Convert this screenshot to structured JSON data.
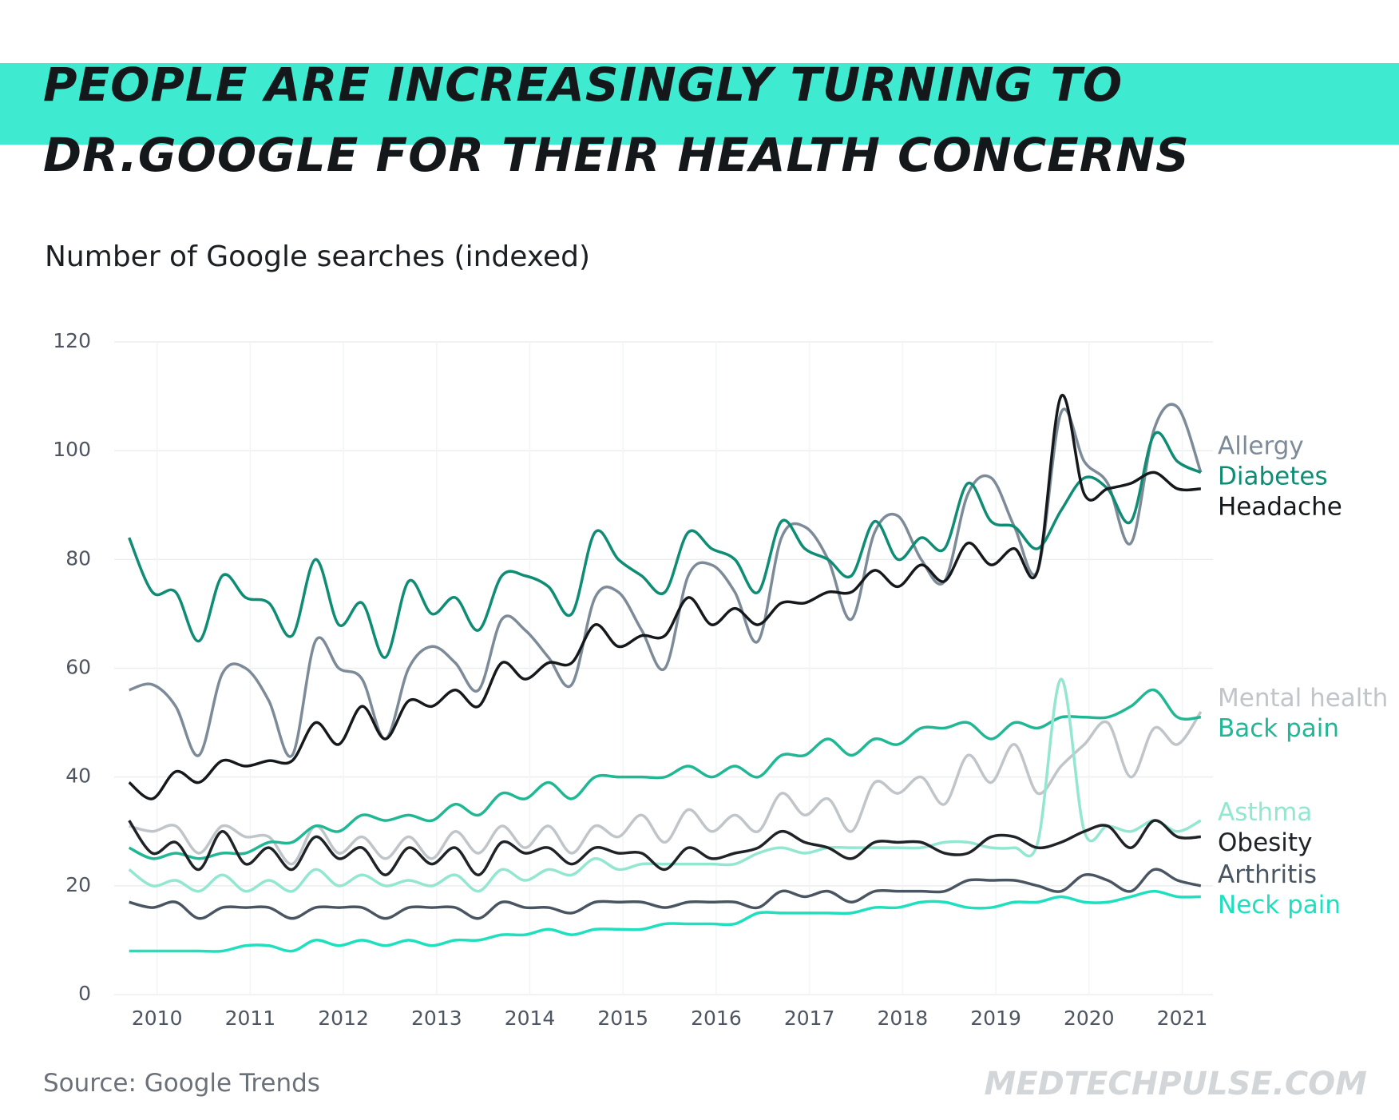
{
  "chart_data": {
    "type": "line",
    "title": [
      "PEOPLE ARE INCREASINGLY TURNING TO",
      "DR.GOOGLE FOR THEIR HEALTH CONCERNS"
    ],
    "subtitle": "Number of Google searches (indexed)",
    "source": "Source: Google Trends",
    "brand": "MEDTECHPULSE.COM",
    "x": [
      2009.7,
      2009.95,
      2010.2,
      2010.45,
      2010.7,
      2010.95,
      2011.2,
      2011.45,
      2011.7,
      2011.95,
      2012.2,
      2012.45,
      2012.7,
      2012.95,
      2013.2,
      2013.45,
      2013.7,
      2013.95,
      2014.2,
      2014.45,
      2014.7,
      2014.95,
      2015.2,
      2015.45,
      2015.7,
      2015.95,
      2016.2,
      2016.45,
      2016.7,
      2016.95,
      2017.2,
      2017.45,
      2017.7,
      2017.95,
      2018.2,
      2018.45,
      2018.7,
      2018.95,
      2019.2,
      2019.45,
      2019.7,
      2019.95,
      2020.2,
      2020.45,
      2020.7,
      2020.95,
      2021.2
    ],
    "xlim": [
      2009.54,
      2021.33
    ],
    "xticks": [
      2010,
      2011,
      2012,
      2013,
      2014,
      2015,
      2016,
      2017,
      2018,
      2019,
      2020,
      2021
    ],
    "ylim": [
      0,
      120
    ],
    "yticks": [
      0,
      20,
      40,
      60,
      80,
      100,
      120
    ],
    "grid": true,
    "series": [
      {
        "name": "Allergy",
        "color": "#7d8b99",
        "values": [
          56,
          57,
          53,
          44,
          59,
          60,
          54,
          44,
          65,
          60,
          58,
          47,
          60,
          64,
          61,
          56,
          69,
          67,
          62,
          57,
          73,
          74,
          67,
          60,
          77,
          79,
          74,
          65,
          84,
          86,
          80,
          69,
          85,
          88,
          80,
          76,
          92,
          95,
          86,
          78,
          107,
          98,
          94,
          83,
          104,
          108,
          96
        ]
      },
      {
        "name": "Diabetes",
        "color": "#0f8c74",
        "values": [
          84,
          74,
          74,
          65,
          77,
          73,
          72,
          66,
          80,
          68,
          72,
          62,
          76,
          70,
          73,
          67,
          77,
          77,
          75,
          70,
          85,
          80,
          77,
          74,
          85,
          82,
          80,
          74,
          87,
          82,
          80,
          77,
          87,
          80,
          84,
          82,
          94,
          87,
          86,
          82,
          89,
          95,
          93,
          87,
          103,
          98,
          96
        ]
      },
      {
        "name": "Headache",
        "color": "#16191c",
        "values": [
          39,
          36,
          41,
          39,
          43,
          42,
          43,
          43,
          50,
          46,
          53,
          47,
          54,
          53,
          56,
          53,
          61,
          58,
          61,
          61,
          68,
          64,
          66,
          66,
          73,
          68,
          71,
          68,
          72,
          72,
          74,
          74,
          78,
          75,
          79,
          76,
          83,
          79,
          82,
          78,
          110,
          92,
          93,
          94,
          96,
          93,
          93
        ]
      },
      {
        "name": "Mental health",
        "color": "#c0c5c9",
        "values": [
          31,
          30,
          31,
          26,
          31,
          29,
          29,
          24,
          31,
          26,
          29,
          25,
          29,
          25,
          30,
          26,
          31,
          27,
          31,
          26,
          31,
          29,
          33,
          28,
          34,
          30,
          33,
          30,
          37,
          33,
          36,
          30,
          39,
          37,
          40,
          35,
          44,
          39,
          46,
          37,
          42,
          46,
          50,
          40,
          49,
          46,
          52
        ]
      },
      {
        "name": "Back pain",
        "color": "#20b894",
        "values": [
          27,
          25,
          26,
          25,
          26,
          26,
          28,
          28,
          31,
          30,
          33,
          32,
          33,
          32,
          35,
          33,
          37,
          36,
          39,
          36,
          40,
          40,
          40,
          40,
          42,
          40,
          42,
          40,
          44,
          44,
          47,
          44,
          47,
          46,
          49,
          49,
          50,
          47,
          50,
          49,
          51,
          51,
          51,
          53,
          56,
          51,
          51
        ]
      },
      {
        "name": "Asthma",
        "color": "#93e6d0",
        "values": [
          23,
          20,
          21,
          19,
          22,
          19,
          21,
          19,
          23,
          20,
          22,
          20,
          21,
          20,
          22,
          19,
          23,
          21,
          23,
          22,
          25,
          23,
          24,
          24,
          24,
          24,
          24,
          26,
          27,
          26,
          27,
          27,
          27,
          27,
          27,
          28,
          28,
          27,
          27,
          28,
          58,
          30,
          31,
          30,
          32,
          30,
          32
        ]
      },
      {
        "name": "Obesity",
        "color": "#1f2226",
        "values": [
          32,
          26,
          28,
          23,
          30,
          24,
          27,
          23,
          29,
          25,
          27,
          22,
          27,
          24,
          27,
          22,
          28,
          26,
          27,
          24,
          27,
          26,
          26,
          23,
          27,
          25,
          26,
          27,
          30,
          28,
          27,
          25,
          28,
          28,
          28,
          26,
          26,
          29,
          29,
          27,
          28,
          30,
          31,
          27,
          32,
          29,
          29
        ]
      },
      {
        "name": "Arthritis",
        "color": "#4a5562",
        "values": [
          17,
          16,
          17,
          14,
          16,
          16,
          16,
          14,
          16,
          16,
          16,
          14,
          16,
          16,
          16,
          14,
          17,
          16,
          16,
          15,
          17,
          17,
          17,
          16,
          17,
          17,
          17,
          16,
          19,
          18,
          19,
          17,
          19,
          19,
          19,
          19,
          21,
          21,
          21,
          20,
          19,
          22,
          21,
          19,
          23,
          21,
          20
        ]
      },
      {
        "name": "Neck pain",
        "color": "#1ee0bf",
        "values": [
          8,
          8,
          8,
          8,
          8,
          9,
          9,
          8,
          10,
          9,
          10,
          9,
          10,
          9,
          10,
          10,
          11,
          11,
          12,
          11,
          12,
          12,
          12,
          13,
          13,
          13,
          13,
          15,
          15,
          15,
          15,
          15,
          16,
          16,
          17,
          17,
          16,
          16,
          17,
          17,
          18,
          17,
          17,
          18,
          19,
          18,
          18
        ]
      }
    ]
  }
}
